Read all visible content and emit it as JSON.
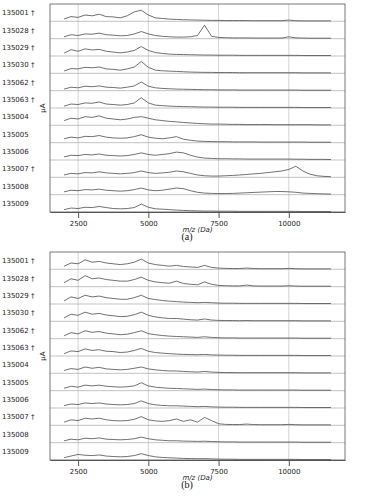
{
  "chart_data": [
    {
      "type": "line",
      "title": "(a)",
      "xlabel": "m/z (Da)",
      "ylabel": "µA",
      "xlim": [
        1500,
        12000
      ],
      "xticks": [
        2500,
        5000,
        7500,
        10000
      ],
      "ylim": [
        0,
        100
      ],
      "grid": true,
      "tick_labels": "x",
      "x": [
        2000,
        2250,
        2500,
        2750,
        3000,
        3250,
        3500,
        3750,
        4000,
        4250,
        4500,
        4750,
        5000,
        5250,
        5500,
        5750,
        6000,
        6250,
        6500,
        6750,
        7000,
        7250,
        7500,
        7750,
        8000,
        8250,
        8500,
        8750,
        9000,
        9250,
        9500,
        9750,
        10000,
        10250,
        10500,
        10750,
        11000,
        11250,
        11500
      ],
      "series": [
        {
          "name": "135001 †",
          "color": "#333333",
          "values": [
            15,
            30,
            25,
            40,
            35,
            45,
            30,
            28,
            22,
            35,
            60,
            70,
            40,
            22,
            18,
            14,
            12,
            10,
            9,
            8,
            7,
            6,
            6,
            5,
            5,
            5,
            5,
            4,
            4,
            4,
            4,
            4,
            8,
            4,
            3,
            3,
            3,
            3,
            3
          ]
        },
        {
          "name": "135028 †",
          "color": "#333333",
          "values": [
            12,
            25,
            20,
            30,
            28,
            35,
            25,
            22,
            18,
            20,
            30,
            45,
            30,
            20,
            15,
            12,
            10,
            10,
            12,
            20,
            85,
            15,
            8,
            6,
            5,
            5,
            5,
            4,
            4,
            4,
            4,
            4,
            12,
            5,
            4,
            3,
            3,
            3,
            3
          ]
        },
        {
          "name": "135029 †",
          "color": "#333333",
          "values": [
            18,
            40,
            30,
            45,
            38,
            42,
            30,
            25,
            20,
            25,
            35,
            60,
            35,
            22,
            16,
            12,
            10,
            9,
            8,
            7,
            6,
            6,
            5,
            5,
            5,
            4,
            4,
            4,
            4,
            4,
            4,
            4,
            4,
            4,
            3,
            3,
            3,
            3,
            3
          ]
        },
        {
          "name": "135030 †",
          "color": "#333333",
          "values": [
            15,
            30,
            28,
            38,
            35,
            40,
            28,
            25,
            20,
            28,
            40,
            75,
            38,
            20,
            16,
            14,
            12,
            10,
            8,
            7,
            6,
            6,
            5,
            5,
            5,
            4,
            4,
            4,
            4,
            4,
            4,
            4,
            4,
            4,
            3,
            3,
            3,
            3,
            3
          ]
        },
        {
          "name": "135062 †",
          "color": "#333333",
          "values": [
            10,
            22,
            18,
            28,
            25,
            30,
            22,
            20,
            16,
            22,
            30,
            55,
            28,
            18,
            14,
            12,
            10,
            9,
            8,
            7,
            6,
            6,
            5,
            5,
            5,
            4,
            4,
            4,
            4,
            4,
            4,
            4,
            4,
            4,
            3,
            3,
            3,
            3,
            3
          ]
        },
        {
          "name": "135063 †",
          "color": "#333333",
          "values": [
            12,
            25,
            22,
            32,
            30,
            38,
            25,
            22,
            18,
            22,
            32,
            65,
            32,
            18,
            15,
            12,
            10,
            9,
            8,
            7,
            6,
            6,
            5,
            5,
            5,
            4,
            4,
            4,
            4,
            4,
            4,
            4,
            4,
            4,
            3,
            3,
            3,
            3,
            3
          ]
        },
        {
          "name": "135004",
          "color": "#333333",
          "values": [
            30,
            45,
            40,
            55,
            50,
            60,
            45,
            40,
            35,
            40,
            50,
            55,
            45,
            35,
            30,
            25,
            22,
            18,
            15,
            12,
            10,
            8,
            8,
            7,
            6,
            6,
            5,
            5,
            5,
            5,
            4,
            4,
            4,
            4,
            4,
            4,
            3,
            3,
            3
          ]
        },
        {
          "name": "135005",
          "color": "#333333",
          "values": [
            25,
            35,
            30,
            40,
            38,
            45,
            35,
            30,
            28,
            30,
            38,
            50,
            35,
            28,
            25,
            30,
            38,
            22,
            15,
            10,
            8,
            7,
            6,
            6,
            5,
            5,
            5,
            5,
            4,
            4,
            4,
            4,
            4,
            4,
            4,
            3,
            3,
            3,
            3
          ]
        },
        {
          "name": "135006",
          "color": "#333333",
          "values": [
            20,
            30,
            28,
            35,
            32,
            38,
            30,
            28,
            25,
            28,
            35,
            45,
            35,
            30,
            35,
            40,
            50,
            45,
            30,
            18,
            12,
            10,
            8,
            8,
            7,
            7,
            6,
            6,
            6,
            6,
            6,
            6,
            6,
            5,
            5,
            4,
            4,
            4,
            3
          ]
        },
        {
          "name": "135007 †",
          "color": "#333333",
          "values": [
            15,
            25,
            22,
            30,
            28,
            35,
            28,
            25,
            22,
            25,
            30,
            40,
            30,
            25,
            28,
            32,
            40,
            35,
            25,
            15,
            10,
            8,
            8,
            10,
            12,
            15,
            18,
            22,
            25,
            30,
            35,
            40,
            50,
            70,
            40,
            20,
            10,
            6,
            4
          ]
        },
        {
          "name": "135008",
          "color": "#333333",
          "values": [
            18,
            28,
            25,
            32,
            30,
            35,
            28,
            25,
            22,
            25,
            32,
            42,
            30,
            25,
            28,
            35,
            42,
            38,
            25,
            15,
            10,
            8,
            7,
            7,
            8,
            10,
            12,
            14,
            16,
            18,
            20,
            20,
            18,
            15,
            10,
            8,
            6,
            5,
            4
          ]
        },
        {
          "name": "135009",
          "color": "#333333",
          "values": [
            15,
            25,
            22,
            30,
            28,
            35,
            28,
            22,
            20,
            22,
            28,
            50,
            30,
            20,
            18,
            15,
            12,
            10,
            8,
            7,
            6,
            6,
            5,
            5,
            5,
            4,
            4,
            4,
            4,
            4,
            4,
            4,
            4,
            4,
            3,
            3,
            3,
            3,
            3
          ]
        }
      ]
    },
    {
      "type": "line",
      "title": "(b)",
      "xlabel": "m/z (Da)",
      "ylabel": "µA",
      "xlim": [
        1500,
        12000
      ],
      "xticks": [
        2500,
        5000,
        7500,
        10000
      ],
      "ylim": [
        0,
        100
      ],
      "grid": true,
      "tick_labels": "x",
      "x": [
        2000,
        2250,
        2500,
        2750,
        3000,
        3250,
        3500,
        3750,
        4000,
        4250,
        4500,
        4750,
        5000,
        5250,
        5500,
        5750,
        6000,
        6250,
        6500,
        6750,
        7000,
        7250,
        7500,
        7750,
        8000,
        8250,
        8500,
        8750,
        9000,
        9250,
        9500,
        9750,
        10000,
        10250,
        10500,
        10750,
        11000,
        11250,
        11500
      ],
      "series": [
        {
          "name": "135001 †",
          "color": "#333333",
          "values": [
            20,
            40,
            35,
            60,
            45,
            50,
            40,
            35,
            30,
            35,
            45,
            65,
            40,
            30,
            25,
            20,
            25,
            18,
            15,
            12,
            25,
            12,
            8,
            6,
            5,
            5,
            8,
            5,
            4,
            4,
            4,
            4,
            6,
            4,
            3,
            3,
            3,
            3,
            3
          ]
        },
        {
          "name": "135028 †",
          "color": "#333333",
          "values": [
            25,
            50,
            40,
            70,
            50,
            55,
            45,
            40,
            35,
            35,
            45,
            60,
            40,
            30,
            25,
            22,
            35,
            20,
            15,
            12,
            30,
            15,
            8,
            6,
            5,
            5,
            10,
            5,
            4,
            4,
            4,
            4,
            6,
            4,
            3,
            3,
            3,
            3,
            3
          ]
        },
        {
          "name": "135029 †",
          "color": "#333333",
          "values": [
            20,
            45,
            35,
            55,
            45,
            50,
            40,
            35,
            30,
            30,
            40,
            55,
            35,
            28,
            22,
            18,
            15,
            12,
            10,
            8,
            10,
            8,
            6,
            5,
            5,
            4,
            4,
            4,
            4,
            4,
            4,
            4,
            4,
            4,
            3,
            3,
            3,
            3,
            3
          ]
        },
        {
          "name": "135030 †",
          "color": "#333333",
          "values": [
            22,
            45,
            38,
            58,
            45,
            50,
            40,
            35,
            30,
            32,
            42,
            58,
            38,
            28,
            22,
            18,
            18,
            14,
            10,
            8,
            15,
            8,
            6,
            5,
            5,
            4,
            5,
            4,
            4,
            4,
            4,
            4,
            4,
            4,
            3,
            3,
            3,
            3,
            3
          ]
        },
        {
          "name": "135062 †",
          "color": "#333333",
          "values": [
            18,
            38,
            30,
            50,
            40,
            45,
            35,
            30,
            25,
            28,
            38,
            50,
            32,
            25,
            20,
            16,
            14,
            12,
            10,
            8,
            12,
            8,
            6,
            5,
            5,
            4,
            4,
            4,
            4,
            4,
            4,
            4,
            4,
            4,
            3,
            3,
            3,
            3,
            3
          ]
        },
        {
          "name": "135063 †",
          "color": "#333333",
          "values": [
            15,
            32,
            28,
            45,
            35,
            40,
            30,
            28,
            22,
            25,
            35,
            48,
            30,
            22,
            18,
            15,
            12,
            10,
            9,
            8,
            10,
            7,
            6,
            5,
            5,
            4,
            4,
            4,
            4,
            4,
            4,
            4,
            4,
            4,
            3,
            3,
            3,
            3,
            3
          ]
        },
        {
          "name": "135004",
          "color": "#333333",
          "values": [
            18,
            30,
            25,
            40,
            32,
            38,
            28,
            25,
            22,
            25,
            32,
            40,
            28,
            22,
            18,
            15,
            15,
            12,
            10,
            8,
            12,
            8,
            6,
            5,
            5,
            4,
            4,
            4,
            4,
            4,
            4,
            4,
            4,
            4,
            3,
            3,
            3,
            3,
            3
          ]
        },
        {
          "name": "135005",
          "color": "#333333",
          "values": [
            15,
            28,
            22,
            35,
            30,
            35,
            28,
            25,
            22,
            25,
            30,
            50,
            30,
            22,
            18,
            15,
            14,
            12,
            10,
            8,
            10,
            7,
            6,
            5,
            5,
            4,
            4,
            4,
            4,
            4,
            4,
            4,
            4,
            4,
            3,
            3,
            3,
            3,
            3
          ]
        },
        {
          "name": "135006",
          "color": "#333333",
          "values": [
            15,
            25,
            22,
            32,
            28,
            32,
            25,
            22,
            20,
            22,
            28,
            45,
            28,
            20,
            16,
            14,
            14,
            12,
            10,
            8,
            10,
            7,
            6,
            5,
            5,
            4,
            4,
            4,
            4,
            4,
            4,
            4,
            4,
            4,
            3,
            3,
            3,
            3,
            3
          ]
        },
        {
          "name": "135007 †",
          "color": "#333333",
          "values": [
            20,
            35,
            30,
            45,
            40,
            45,
            35,
            30,
            28,
            30,
            38,
            55,
            35,
            28,
            25,
            30,
            40,
            25,
            35,
            20,
            50,
            30,
            10,
            6,
            5,
            5,
            8,
            5,
            4,
            4,
            4,
            4,
            6,
            4,
            3,
            3,
            3,
            3,
            3
          ]
        },
        {
          "name": "135008",
          "color": "#333333",
          "values": [
            12,
            22,
            18,
            28,
            25,
            30,
            22,
            20,
            18,
            20,
            25,
            35,
            25,
            18,
            15,
            12,
            12,
            10,
            9,
            8,
            9,
            7,
            6,
            5,
            5,
            4,
            4,
            4,
            4,
            4,
            4,
            4,
            4,
            4,
            3,
            3,
            3,
            3,
            3
          ]
        },
        {
          "name": "135009",
          "color": "#333333",
          "values": [
            15,
            25,
            35,
            30,
            28,
            32,
            25,
            22,
            20,
            22,
            28,
            40,
            28,
            20,
            16,
            14,
            12,
            10,
            9,
            8,
            9,
            7,
            6,
            5,
            5,
            4,
            4,
            4,
            4,
            4,
            4,
            4,
            4,
            4,
            3,
            3,
            3,
            3,
            3
          ]
        }
      ]
    }
  ]
}
